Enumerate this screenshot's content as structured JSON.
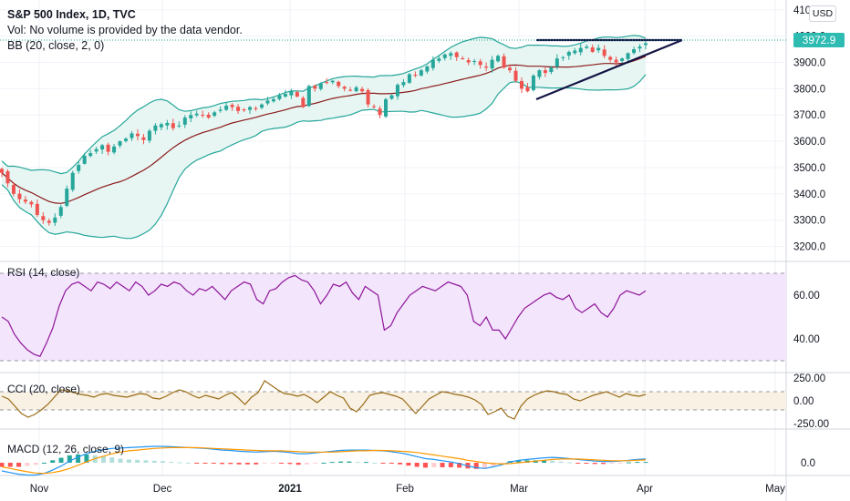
{
  "header": {
    "title": "S&P 500 Index, 1D, TVC",
    "volume_note": "Vol: No volume is provided by the data vendor.",
    "bb_label": "BB (20, close, 2, 0)"
  },
  "currency_button": "USD",
  "last_price_label": "3972.9",
  "colors": {
    "up": "#26a69a",
    "down": "#ef5350",
    "bb_band": "#26a69a",
    "bb_basis": "#8b1a1a",
    "bb_fill": "#e7f6f3",
    "rsi_line": "#8e1599",
    "rsi_fill": "#f3e5fc",
    "cci_line": "#996a15",
    "cci_fill": "#f8f1e4",
    "macd_line": "#2196f3",
    "signal_line": "#ff9800",
    "trendline": "#131344",
    "price_line": "#26a69a"
  },
  "panels": {
    "rsi_label": "RSI (14, close)",
    "cci_label": "CCI (20, close)",
    "macd_label": "MACD (12, 26, close, 9)"
  },
  "chart_data": {
    "type": "candlestick",
    "x_axis": {
      "tick_labels": [
        "Nov",
        "Dec",
        "2021",
        "Feb",
        "Mar",
        "Apr",
        "May"
      ]
    },
    "price_axis": {
      "ticks": [
        "4100.0",
        "4000.0",
        "3900.0",
        "3800.0",
        "3700.0",
        "3600.0",
        "3500.0",
        "3400.0",
        "3300.0",
        "3200.0"
      ],
      "range": [
        3150,
        4120
      ]
    },
    "rsi_axis": {
      "ticks": [
        "60.00",
        "40.00"
      ],
      "bands": [
        30,
        70
      ],
      "range": [
        25,
        75
      ]
    },
    "cci_axis": {
      "ticks": [
        "250.00",
        "0.00",
        "-250.00"
      ],
      "bands": [
        -100,
        100
      ],
      "range": [
        -300,
        300
      ]
    },
    "macd_axis": {
      "ticks": [
        "0.0"
      ]
    },
    "last_close": 3972.9,
    "closes": [
      3480,
      3440,
      3400,
      3380,
      3370,
      3360,
      3320,
      3300,
      3290,
      3310,
      3350,
      3420,
      3480,
      3510,
      3545,
      3555,
      3570,
      3585,
      3560,
      3580,
      3600,
      3610,
      3630,
      3620,
      3605,
      3640,
      3660,
      3665,
      3670,
      3650,
      3660,
      3690,
      3700,
      3705,
      3700,
      3690,
      3710,
      3720,
      3735,
      3730,
      3715,
      3720,
      3730,
      3725,
      3740,
      3755,
      3760,
      3775,
      3780,
      3790,
      3770,
      3730,
      3810,
      3800,
      3820,
      3825,
      3830,
      3810,
      3800,
      3795,
      3805,
      3790,
      3740,
      3730,
      3700,
      3760,
      3775,
      3815,
      3825,
      3855,
      3850,
      3870,
      3885,
      3910,
      3915,
      3930,
      3935,
      3920,
      3915,
      3900,
      3905,
      3890,
      3880,
      3910,
      3925,
      3880,
      3870,
      3830,
      3800,
      3790,
      3850,
      3870,
      3860,
      3880,
      3915,
      3920,
      3940,
      3945,
      3955,
      3960,
      3940,
      3955,
      3925,
      3910,
      3900,
      3915,
      3935,
      3950,
      3960,
      3972.9
    ],
    "rsi": [
      50,
      48,
      42,
      38,
      35,
      33,
      32,
      38,
      45,
      55,
      62,
      65,
      66,
      64,
      62,
      66,
      65,
      63,
      66,
      64,
      62,
      66,
      64,
      60,
      62,
      65,
      64,
      66,
      65,
      62,
      60,
      63,
      62,
      64,
      61,
      58,
      62,
      64,
      66,
      65,
      58,
      56,
      62,
      63,
      66,
      68,
      69,
      67,
      66,
      62,
      56,
      60,
      65,
      64,
      66,
      61,
      58,
      64,
      62,
      60,
      44,
      46,
      52,
      56,
      60,
      62,
      64,
      63,
      62,
      64,
      66,
      65,
      64,
      60,
      48,
      46,
      50,
      44,
      44,
      40,
      45,
      50,
      54,
      56,
      58,
      60,
      61,
      59,
      58,
      60,
      54,
      52,
      54,
      56,
      52,
      50,
      54,
      60,
      62,
      61,
      60,
      62
    ],
    "cci": [
      50,
      20,
      -60,
      -140,
      -180,
      -150,
      -100,
      -40,
      40,
      120,
      110,
      90,
      70,
      60,
      40,
      70,
      80,
      60,
      50,
      40,
      60,
      80,
      70,
      30,
      20,
      50,
      90,
      120,
      100,
      60,
      30,
      60,
      40,
      20,
      60,
      90,
      30,
      -40,
      40,
      90,
      220,
      170,
      120,
      80,
      70,
      50,
      70,
      30,
      -20,
      40,
      100,
      60,
      30,
      -80,
      -120,
      -40,
      60,
      80,
      90,
      70,
      50,
      20,
      -60,
      -140,
      -60,
      20,
      60,
      100,
      90,
      70,
      60,
      40,
      10,
      -40,
      -150,
      -120,
      -80,
      -170,
      -200,
      -60,
      20,
      60,
      90,
      110,
      100,
      80,
      70,
      20,
      0,
      30,
      60,
      80,
      100,
      70,
      40,
      80,
      60,
      50,
      70
    ],
    "macd": [
      -20,
      -24,
      -28,
      -30,
      -30,
      -26,
      -18,
      -8,
      4,
      14,
      22,
      28,
      32,
      35,
      36,
      37,
      38,
      39,
      40,
      40,
      39,
      38,
      37,
      36,
      35,
      33,
      31,
      30,
      28,
      27,
      26,
      27,
      28,
      27,
      25,
      22,
      22,
      24,
      26,
      28,
      30,
      31,
      31,
      31,
      30,
      29,
      27,
      24,
      20,
      15,
      10,
      8,
      5,
      2,
      -2,
      -8,
      -12,
      -14,
      -10,
      -5,
      2,
      6,
      8,
      10,
      12,
      13,
      12,
      10,
      8,
      6,
      4,
      3,
      3,
      4,
      6,
      8,
      9
    ],
    "signal": [
      -10,
      -14,
      -18,
      -22,
      -25,
      -26,
      -24,
      -20,
      -14,
      -6,
      2,
      10,
      16,
      22,
      26,
      29,
      31,
      33,
      35,
      36,
      37,
      37,
      37,
      37,
      36,
      35,
      34,
      33,
      32,
      31,
      30,
      29,
      29,
      29,
      28,
      27,
      26,
      26,
      26,
      26,
      27,
      28,
      29,
      29,
      30,
      30,
      29,
      28,
      27,
      25,
      22,
      19,
      16,
      13,
      10,
      6,
      3,
      0,
      -2,
      -3,
      -2,
      0,
      2,
      4,
      6,
      8,
      9,
      9,
      9,
      8,
      7,
      6,
      5,
      5,
      5,
      6,
      7
    ]
  }
}
